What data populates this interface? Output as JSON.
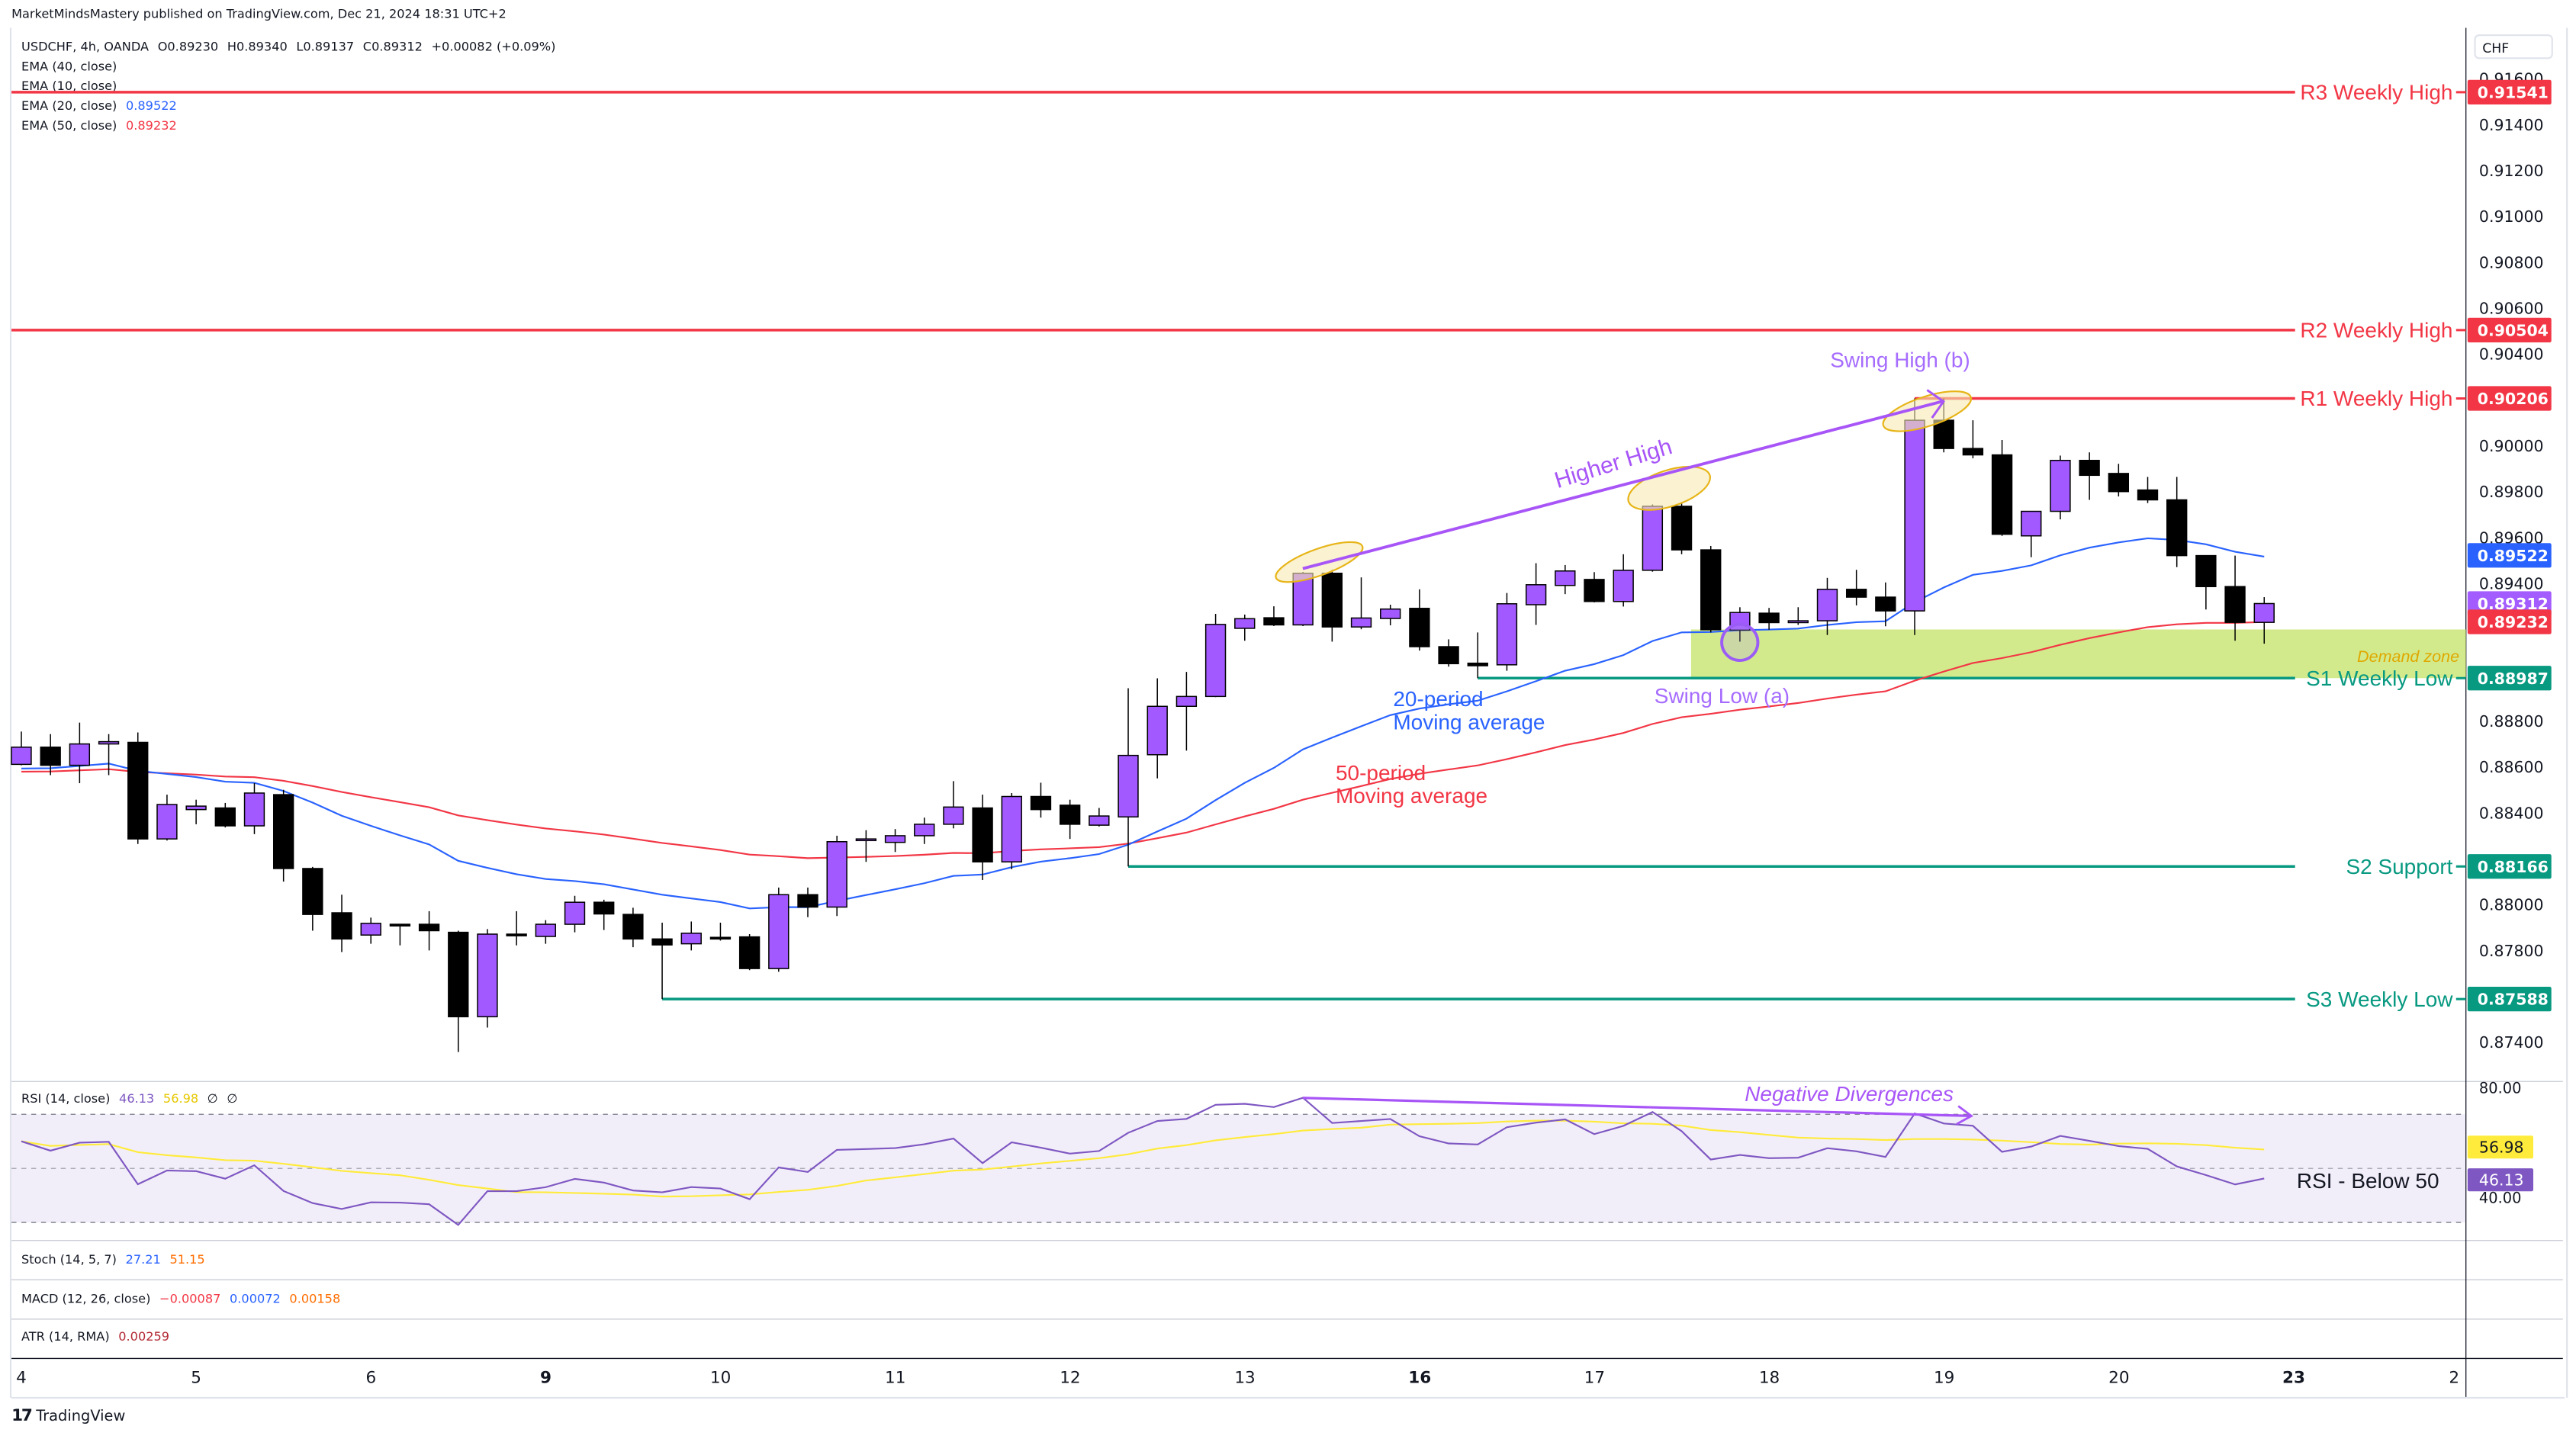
{
  "publisher": "MarketMindsMastery published on TradingView.com, Dec 21, 2024 18:31 UTC+2",
  "legend": {
    "symbol": "USDCHF, 4h, OANDA",
    "open": "O0.89230",
    "high": "H0.89340",
    "low": "L0.89137",
    "close": "C0.89312",
    "change": "+0.00082 (+0.09%)",
    "ema40": "EMA (40, close)",
    "ema10": "EMA (10, close)",
    "ema20": "EMA (20, close)",
    "ema20_value": "0.89522",
    "ema50": "EMA (50, close)",
    "ema50_value": "0.89232"
  },
  "currency": "CHF",
  "price_ticks": [
    "0.91600",
    "0.91400",
    "0.91200",
    "0.91000",
    "0.90800",
    "0.90600",
    "0.90400",
    "0.90000",
    "0.89800",
    "0.89600",
    "0.89400",
    "0.88800",
    "0.88600",
    "0.88400",
    "0.88000",
    "0.87800",
    "0.87400"
  ],
  "levels": [
    {
      "label": "R3 Weekly High",
      "price": 0.91541,
      "tag": "0.91541",
      "color": "#f23645",
      "start_index": -1
    },
    {
      "label": "R2 Weekly High",
      "price": 0.90504,
      "tag": "0.90504",
      "color": "#f23645",
      "start_index": -1
    },
    {
      "label": "R1 Weekly High",
      "price": 0.90206,
      "tag": "0.90206",
      "color": "#f23645",
      "start_index": 65
    },
    {
      "label": "S1 Weekly Low",
      "price": 0.88987,
      "tag": "0.88987",
      "color": "#089981",
      "start_index": 50
    },
    {
      "label": "S2 Support",
      "price": 0.88166,
      "tag": "0.88166",
      "color": "#089981",
      "start_index": 38
    },
    {
      "label": "S3 Weekly Low",
      "price": 0.87588,
      "tag": "0.87588",
      "color": "#089981",
      "start_index": 22
    }
  ],
  "price_tags": [
    {
      "tag": "0.89522",
      "price": 0.89522,
      "color": "#2962ff"
    },
    {
      "tag": "0.89312",
      "price": 0.89312,
      "color": "#a35cff"
    },
    {
      "tag": "0.89232",
      "price": 0.89232,
      "color": "#f23645"
    }
  ],
  "demand_zone": {
    "label": "Demand zone",
    "top": 0.89199,
    "bottom": 0.88987,
    "start_index": 58,
    "color": "#cde87f"
  },
  "annotations": {
    "higher_high": "Higher High",
    "swing_high": "Swing High (b)",
    "swing_low": "Swing Low (a)",
    "ma20_line1": "20-period",
    "ma20_line2": "Moving average",
    "ma50_line1": "50-period",
    "ma50_line2": "Moving average",
    "negative_divergences": "Negative Divergences",
    "rsi_below": "RSI - Below 50"
  },
  "rsi": {
    "title": "RSI (14, close)",
    "value": "46.13",
    "ma_value": "56.98",
    "extra1": "∅",
    "extra2": "∅",
    "ticks": [
      "80.00",
      "40.00"
    ],
    "tag_rsi": "46.13",
    "tag_ma": "56.98"
  },
  "stoch": {
    "title": "Stoch (14, 5, 7)",
    "k": "27.21",
    "d": "51.15"
  },
  "macd": {
    "title": "MACD (12, 26, close)",
    "hist": "−0.00087",
    "macd": "0.00072",
    "signal": "0.00158"
  },
  "atr": {
    "title": "ATR (14, RMA)",
    "value": "0.00259"
  },
  "time_axis": [
    {
      "label": "4",
      "bold": false
    },
    {
      "label": "5",
      "bold": false
    },
    {
      "label": "6",
      "bold": false
    },
    {
      "label": "9",
      "bold": true
    },
    {
      "label": "10",
      "bold": false
    },
    {
      "label": "11",
      "bold": false
    },
    {
      "label": "12",
      "bold": false
    },
    {
      "label": "13",
      "bold": false
    },
    {
      "label": "16",
      "bold": true
    },
    {
      "label": "17",
      "bold": false
    },
    {
      "label": "18",
      "bold": false
    },
    {
      "label": "19",
      "bold": false
    },
    {
      "label": "20",
      "bold": false
    },
    {
      "label": "23",
      "bold": true
    },
    {
      "label": "2",
      "bold": false
    }
  ],
  "brand": "TradingView",
  "chart_data": {
    "type": "candlestick",
    "title": "USDCHF, 4h, OANDA",
    "ylim": [
      0.8726,
      0.917
    ],
    "up_color": "#a259ff",
    "down_color": "#000000",
    "ema20_color": "#2962ff",
    "ema50_color": "#f23645",
    "ema20_seed": 0.88593,
    "ema50_seed": 0.88579,
    "rsi_seed_gain": 0.0006,
    "rsi_seed_loss": 0.0004,
    "ohlc": [
      [
        0.88611,
        0.88754,
        0.88607,
        0.88686
      ],
      [
        0.88686,
        0.88743,
        0.88564,
        0.88607
      ],
      [
        0.88607,
        0.88793,
        0.88529,
        0.887
      ],
      [
        0.887,
        0.88743,
        0.88564,
        0.8871
      ],
      [
        0.88707,
        0.8875,
        0.88264,
        0.88286
      ],
      [
        0.88286,
        0.88479,
        0.88279,
        0.88436
      ],
      [
        0.88414,
        0.88457,
        0.8835,
        0.88429
      ],
      [
        0.88421,
        0.88443,
        0.88336,
        0.88343
      ],
      [
        0.88343,
        0.88529,
        0.88307,
        0.88486
      ],
      [
        0.88479,
        0.885,
        0.881,
        0.88157
      ],
      [
        0.88157,
        0.88164,
        0.87886,
        0.87957
      ],
      [
        0.87964,
        0.88043,
        0.87793,
        0.8785
      ],
      [
        0.87867,
        0.87943,
        0.87829,
        0.87918
      ],
      [
        0.87914,
        0.87914,
        0.87822,
        0.87912
      ],
      [
        0.87914,
        0.87971,
        0.878,
        0.87886
      ],
      [
        0.87879,
        0.87886,
        0.87357,
        0.87511
      ],
      [
        0.87511,
        0.87893,
        0.87464,
        0.87871
      ],
      [
        0.87871,
        0.87971,
        0.87822,
        0.8787
      ],
      [
        0.87861,
        0.87932,
        0.87829,
        0.87914
      ],
      [
        0.87914,
        0.88038,
        0.87879,
        0.8801
      ],
      [
        0.8801,
        0.88021,
        0.87889,
        0.87959
      ],
      [
        0.87957,
        0.87986,
        0.87814,
        0.8785
      ],
      [
        0.8785,
        0.87921,
        0.87588,
        0.87824
      ],
      [
        0.87829,
        0.87926,
        0.878,
        0.87875
      ],
      [
        0.87857,
        0.87921,
        0.87843,
        0.87856
      ],
      [
        0.87859,
        0.87871,
        0.87714,
        0.87721
      ],
      [
        0.87721,
        0.88074,
        0.87707,
        0.88043
      ],
      [
        0.88043,
        0.88074,
        0.87945,
        0.87989
      ],
      [
        0.87989,
        0.883,
        0.8795,
        0.88274
      ],
      [
        0.88279,
        0.88324,
        0.88186,
        0.88286
      ],
      [
        0.88271,
        0.88329,
        0.88229,
        0.883
      ],
      [
        0.883,
        0.88379,
        0.88264,
        0.8835
      ],
      [
        0.8835,
        0.88538,
        0.88332,
        0.88425
      ],
      [
        0.88421,
        0.88479,
        0.88107,
        0.88186
      ],
      [
        0.88186,
        0.88486,
        0.88154,
        0.88471
      ],
      [
        0.88471,
        0.88531,
        0.88379,
        0.88414
      ],
      [
        0.88433,
        0.88457,
        0.88286,
        0.8835
      ],
      [
        0.88346,
        0.88421,
        0.8834,
        0.88386
      ],
      [
        0.88382,
        0.88943,
        0.88166,
        0.8865
      ],
      [
        0.88653,
        0.88986,
        0.8855,
        0.88864
      ],
      [
        0.88864,
        0.89014,
        0.88671,
        0.88907
      ],
      [
        0.88907,
        0.89267,
        0.88904,
        0.89221
      ],
      [
        0.89204,
        0.89264,
        0.8915,
        0.89246
      ],
      [
        0.8925,
        0.893,
        0.89214,
        0.89219
      ],
      [
        0.89219,
        0.8945,
        0.89214,
        0.89444
      ],
      [
        0.89444,
        0.89459,
        0.89146,
        0.8921
      ],
      [
        0.8921,
        0.89426,
        0.892,
        0.89249
      ],
      [
        0.89247,
        0.89307,
        0.89217,
        0.89288
      ],
      [
        0.89291,
        0.89374,
        0.89107,
        0.89124
      ],
      [
        0.89124,
        0.89156,
        0.89037,
        0.8905
      ],
      [
        0.89052,
        0.89186,
        0.88987,
        0.89041
      ],
      [
        0.89045,
        0.89358,
        0.89019,
        0.89311
      ],
      [
        0.89307,
        0.89488,
        0.89219,
        0.89394
      ],
      [
        0.89391,
        0.8948,
        0.89353,
        0.89454
      ],
      [
        0.89417,
        0.89449,
        0.89317,
        0.89321
      ],
      [
        0.89321,
        0.89527,
        0.89299,
        0.89457
      ],
      [
        0.89457,
        0.89744,
        0.89451,
        0.89736
      ],
      [
        0.89736,
        0.89751,
        0.89527,
        0.89546
      ],
      [
        0.89546,
        0.89563,
        0.89186,
        0.89198
      ],
      [
        0.89196,
        0.89296,
        0.89146,
        0.89273
      ],
      [
        0.8927,
        0.89293,
        0.89198,
        0.89229
      ],
      [
        0.89229,
        0.89296,
        0.89219,
        0.89237
      ],
      [
        0.89237,
        0.89424,
        0.89175,
        0.89374
      ],
      [
        0.89374,
        0.89459,
        0.89304,
        0.8934
      ],
      [
        0.8934,
        0.89404,
        0.89213,
        0.8928
      ],
      [
        0.8928,
        0.90206,
        0.89175,
        0.90111
      ],
      [
        0.90111,
        0.90206,
        0.89971,
        0.89988
      ],
      [
        0.89988,
        0.90111,
        0.89945,
        0.8996
      ],
      [
        0.8996,
        0.90025,
        0.89607,
        0.89614
      ],
      [
        0.89607,
        0.89714,
        0.89514,
        0.89714
      ],
      [
        0.89714,
        0.89957,
        0.89679,
        0.89936
      ],
      [
        0.89936,
        0.89971,
        0.89764,
        0.89871
      ],
      [
        0.89879,
        0.89921,
        0.89779,
        0.898
      ],
      [
        0.89807,
        0.89864,
        0.8975,
        0.89764
      ],
      [
        0.89764,
        0.89864,
        0.89471,
        0.89521
      ],
      [
        0.89521,
        0.89521,
        0.89286,
        0.89386
      ],
      [
        0.89386,
        0.89521,
        0.8915,
        0.8923
      ],
      [
        0.8923,
        0.8934,
        0.89137,
        0.89312
      ]
    ]
  }
}
